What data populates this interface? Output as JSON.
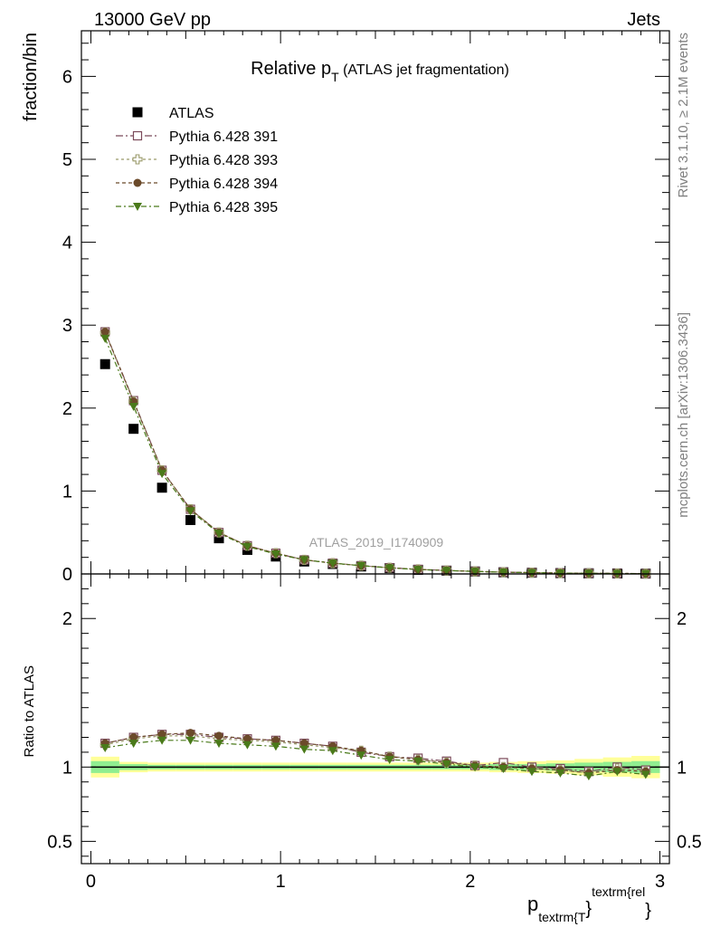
{
  "header": {
    "left": "13000 GeV pp",
    "right": "Jets",
    "title_main": "Relative p",
    "title_sub": "T",
    "title_suffix": " (ATLAS jet fragmentation)",
    "analysis": "ATLAS_2019_I1740909"
  },
  "side": {
    "rivet": "Rivet 3.1.10, ≥ 2.1M events",
    "mcplots": "mcplots.cern.ch [arXiv:1306.3436]"
  },
  "xaxis": {
    "label_p": "p",
    "label_sub": "textrm{T",
    "label_brace": "}",
    "label_sup": "textrm{rel",
    "label_brace2": "}"
  },
  "colors": {
    "atlas": "#000000",
    "p391": "#7b4a5a",
    "p393": "#9a9a6a",
    "p394": "#6b4a2a",
    "p395": "#4a7a1a",
    "band_inner": "#90ee90",
    "band_outer": "#ffff99"
  },
  "chart_data": [
    {
      "type": "scatter",
      "ylabel": "fraction/bin",
      "xlim": [
        -0.05,
        3.05
      ],
      "ylim": [
        0,
        6.55
      ],
      "yticks": [
        0,
        1,
        2,
        3,
        4,
        5,
        6
      ],
      "yticklabels": [
        "0",
        "1",
        "2",
        "3",
        "4",
        "5",
        "6"
      ],
      "x": [
        0.075,
        0.225,
        0.375,
        0.525,
        0.675,
        0.825,
        0.975,
        1.125,
        1.275,
        1.425,
        1.575,
        1.725,
        1.875,
        2.025,
        2.175,
        2.325,
        2.475,
        2.625,
        2.775,
        2.925
      ],
      "legend": {
        "location": "top-left"
      },
      "series": [
        {
          "name": "ATLAS",
          "key": "atlas",
          "marker": "square-filled",
          "values": [
            2.53,
            1.75,
            1.04,
            0.65,
            0.43,
            0.29,
            0.21,
            0.15,
            0.12,
            0.09,
            0.07,
            0.05,
            0.04,
            0.03,
            0.02,
            0.015,
            0.01,
            0.008,
            0.006,
            0.004
          ]
        },
        {
          "name": "Pythia 6.428 391",
          "key": "p391",
          "marker": "square-open",
          "dash": "8,3,2,3",
          "values": [
            2.92,
            2.09,
            1.25,
            0.78,
            0.5,
            0.34,
            0.25,
            0.17,
            0.13,
            0.1,
            0.075,
            0.055,
            0.042,
            0.031,
            0.022,
            0.016,
            0.011,
            0.008,
            0.006,
            0.004
          ]
        },
        {
          "name": "Pythia 6.428 393",
          "key": "p393",
          "marker": "cross-open",
          "dash": "3,3",
          "values": [
            2.91,
            2.08,
            1.25,
            0.78,
            0.5,
            0.34,
            0.25,
            0.17,
            0.13,
            0.1,
            0.075,
            0.055,
            0.042,
            0.031,
            0.021,
            0.016,
            0.011,
            0.008,
            0.006,
            0.004
          ]
        },
        {
          "name": "Pythia 6.428 394",
          "key": "p394",
          "marker": "circle-filled",
          "dash": "4,3",
          "values": [
            2.92,
            2.08,
            1.25,
            0.78,
            0.5,
            0.34,
            0.25,
            0.17,
            0.13,
            0.1,
            0.075,
            0.055,
            0.042,
            0.031,
            0.021,
            0.016,
            0.011,
            0.008,
            0.006,
            0.004
          ]
        },
        {
          "name": "Pythia 6.428 395",
          "key": "p395",
          "marker": "triangle-down-filled",
          "dash": "6,3,2,3",
          "values": [
            2.84,
            2.02,
            1.21,
            0.76,
            0.49,
            0.33,
            0.24,
            0.17,
            0.13,
            0.1,
            0.073,
            0.053,
            0.041,
            0.03,
            0.02,
            0.015,
            0.01,
            0.0075,
            0.0055,
            0.0038
          ]
        }
      ]
    },
    {
      "type": "scatter",
      "ylabel": "Ratio to ATLAS",
      "xlim": [
        -0.05,
        3.05
      ],
      "ylim": [
        0.35,
        2.3
      ],
      "yticks": [
        0.5,
        1,
        2
      ],
      "yticklabels": [
        "0.5",
        "1",
        "2"
      ],
      "xticks": [
        0,
        1,
        2,
        3
      ],
      "xticklabels": [
        "0",
        "1",
        "2",
        "3"
      ],
      "x": [
        0.075,
        0.225,
        0.375,
        0.525,
        0.675,
        0.825,
        0.975,
        1.125,
        1.275,
        1.425,
        1.575,
        1.725,
        1.875,
        2.025,
        2.175,
        2.325,
        2.475,
        2.625,
        2.775,
        2.925
      ],
      "band_inner": [
        0.04,
        0.02,
        0.015,
        0.015,
        0.015,
        0.015,
        0.015,
        0.015,
        0.015,
        0.015,
        0.015,
        0.015,
        0.015,
        0.015,
        0.02,
        0.02,
        0.025,
        0.03,
        0.035,
        0.04
      ],
      "band_outer": [
        0.07,
        0.035,
        0.03,
        0.03,
        0.03,
        0.03,
        0.03,
        0.03,
        0.03,
        0.03,
        0.03,
        0.03,
        0.03,
        0.03,
        0.035,
        0.04,
        0.045,
        0.055,
        0.065,
        0.075
      ],
      "series": [
        {
          "key": "p391",
          "marker": "square-open",
          "dash": "8,3,2,3",
          "values": [
            1.16,
            1.2,
            1.22,
            1.22,
            1.2,
            1.19,
            1.18,
            1.16,
            1.14,
            1.1,
            1.07,
            1.06,
            1.04,
            1.01,
            1.03,
            1.0,
            0.99,
            0.97,
            1.0,
            0.98
          ]
        },
        {
          "key": "p393",
          "marker": "cross-open",
          "dash": "3,3",
          "values": [
            1.15,
            1.19,
            1.21,
            1.21,
            1.19,
            1.18,
            1.17,
            1.15,
            1.13,
            1.11,
            1.07,
            1.05,
            1.03,
            1.01,
            1.0,
            0.99,
            0.98,
            0.96,
            0.99,
            0.97
          ]
        },
        {
          "key": "p394",
          "marker": "circle-filled",
          "dash": "4,3",
          "values": [
            1.16,
            1.2,
            1.22,
            1.23,
            1.21,
            1.19,
            1.18,
            1.16,
            1.14,
            1.11,
            1.07,
            1.05,
            1.03,
            1.01,
            1.0,
            0.99,
            0.98,
            0.96,
            0.98,
            0.97
          ]
        },
        {
          "key": "p395",
          "marker": "triangle-down-filled",
          "dash": "6,3,2,3",
          "values": [
            1.13,
            1.16,
            1.18,
            1.18,
            1.16,
            1.15,
            1.14,
            1.12,
            1.11,
            1.08,
            1.05,
            1.04,
            1.02,
            1.0,
            0.99,
            0.97,
            0.96,
            0.94,
            0.97,
            0.95
          ]
        }
      ]
    }
  ]
}
